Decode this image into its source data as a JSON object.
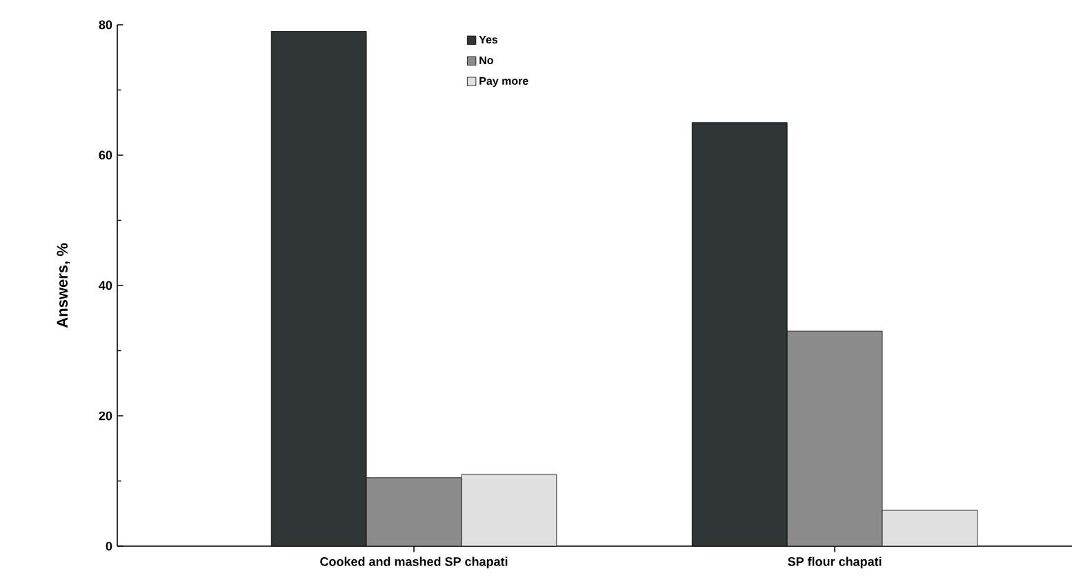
{
  "chart_data": {
    "type": "bar",
    "ylabel": "Answers, %",
    "categories": [
      "Cooked and mashed  SP chapati",
      "SP flour chapati"
    ],
    "series": [
      {
        "name": "Yes",
        "color": "#2f3636",
        "values": [
          79,
          65
        ]
      },
      {
        "name": "No",
        "color": "#8c8c8c",
        "values": [
          10.5,
          33
        ]
      },
      {
        "name": "Pay more",
        "color": "#e0e0e0",
        "values": [
          11,
          5.5
        ]
      }
    ],
    "ylim": [
      0,
      80
    ],
    "yticks": [
      0,
      20,
      40,
      60,
      80
    ],
    "legend": "top",
    "grid": false
  }
}
